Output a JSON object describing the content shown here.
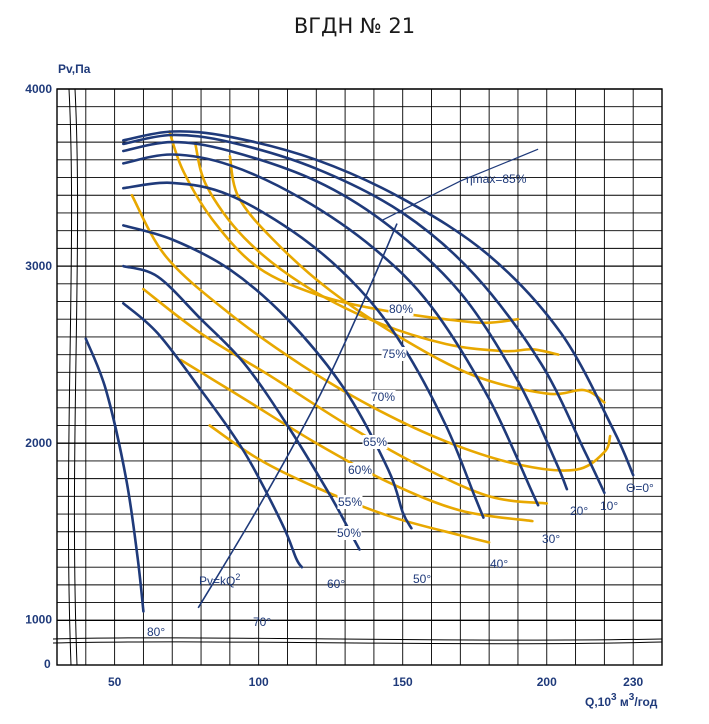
{
  "chart_data": {
    "type": "line",
    "title": "ВГДН № 21",
    "xlabel": "Q,10",
    "xlabel_sup1": "3",
    "xlabel_unit": " м",
    "xlabel_sup2": "3",
    "xlabel_tail": "/год",
    "ylabel": "Pv,Па",
    "xlim": [
      30,
      240
    ],
    "ylim": [
      900,
      4000
    ],
    "x_ticks": [
      "50",
      "100",
      "150",
      "200",
      "230"
    ],
    "x_tick_values": [
      50,
      100,
      150,
      200,
      230
    ],
    "y_ticks": [
      "1000",
      "2000",
      "3000",
      "4000"
    ],
    "y_tick_values": [
      1000,
      2000,
      3000,
      4000
    ],
    "y_zero_label": "0",
    "colors": {
      "blade": "#1f3a7a",
      "efficiency": "#e8a800",
      "grid": "#000000"
    },
    "blade_angle_series": [
      {
        "name": "0°",
        "label": "Θ=0°",
        "points": [
          [
            53,
            3710
          ],
          [
            70,
            3760
          ],
          [
            90,
            3730
          ],
          [
            120,
            3600
          ],
          [
            150,
            3380
          ],
          [
            180,
            3060
          ],
          [
            205,
            2620
          ],
          [
            223,
            2080
          ],
          [
            230,
            1820
          ]
        ]
      },
      {
        "name": "10°",
        "label": "10°",
        "points": [
          [
            53,
            3690
          ],
          [
            70,
            3740
          ],
          [
            90,
            3700
          ],
          [
            120,
            3550
          ],
          [
            150,
            3300
          ],
          [
            175,
            2950
          ],
          [
            198,
            2450
          ],
          [
            213,
            1960
          ],
          [
            220,
            1720
          ]
        ]
      },
      {
        "name": "20°",
        "label": "20°",
        "points": [
          [
            53,
            3650
          ],
          [
            70,
            3700
          ],
          [
            90,
            3650
          ],
          [
            120,
            3480
          ],
          [
            145,
            3230
          ],
          [
            170,
            2850
          ],
          [
            190,
            2350
          ],
          [
            203,
            1900
          ],
          [
            207,
            1740
          ]
        ]
      },
      {
        "name": "30°",
        "label": "30°",
        "points": [
          [
            53,
            3580
          ],
          [
            70,
            3630
          ],
          [
            90,
            3570
          ],
          [
            115,
            3380
          ],
          [
            140,
            3100
          ],
          [
            160,
            2770
          ],
          [
            180,
            2250
          ],
          [
            195,
            1720
          ],
          [
            197,
            1650
          ]
        ]
      },
      {
        "name": "40°",
        "label": "40°",
        "points": [
          [
            53,
            3440
          ],
          [
            70,
            3470
          ],
          [
            90,
            3400
          ],
          [
            115,
            3160
          ],
          [
            135,
            2870
          ],
          [
            150,
            2550
          ],
          [
            165,
            2100
          ],
          [
            175,
            1700
          ],
          [
            178,
            1580
          ]
        ]
      },
      {
        "name": "50°",
        "label": "50°",
        "points": [
          [
            53,
            3230
          ],
          [
            70,
            3150
          ],
          [
            90,
            2980
          ],
          [
            110,
            2700
          ],
          [
            130,
            2300
          ],
          [
            145,
            1850
          ],
          [
            150,
            1610
          ],
          [
            153,
            1520
          ]
        ]
      },
      {
        "name": "60°",
        "label": "60°",
        "points": [
          [
            53,
            3000
          ],
          [
            65,
            2940
          ],
          [
            80,
            2700
          ],
          [
            95,
            2450
          ],
          [
            110,
            2100
          ],
          [
            125,
            1700
          ],
          [
            133,
            1460
          ],
          [
            135,
            1400
          ]
        ]
      },
      {
        "name": "70°",
        "label": "70°",
        "points": [
          [
            53,
            2790
          ],
          [
            65,
            2620
          ],
          [
            80,
            2300
          ],
          [
            95,
            1950
          ],
          [
            108,
            1550
          ],
          [
            113,
            1350
          ],
          [
            115,
            1300
          ]
        ]
      },
      {
        "name": "80°",
        "label": "80°",
        "points": [
          [
            40,
            2590
          ],
          [
            47,
            2300
          ],
          [
            54,
            1800
          ],
          [
            58,
            1350
          ],
          [
            60,
            1050
          ]
        ]
      }
    ],
    "efficiency_series": [
      {
        "name": "80%",
        "label": "80%",
        "points": [
          [
            69,
            3760
          ],
          [
            74,
            3530
          ],
          [
            85,
            3240
          ],
          [
            100,
            2990
          ],
          [
            120,
            2840
          ],
          [
            140,
            2760
          ],
          [
            160,
            2710
          ],
          [
            178,
            2680
          ],
          [
            190,
            2700
          ]
        ]
      },
      {
        "name": "75%",
        "label": "75%",
        "points": [
          [
            78,
            3690
          ],
          [
            82,
            3450
          ],
          [
            95,
            3160
          ],
          [
            115,
            2900
          ],
          [
            140,
            2690
          ],
          [
            165,
            2560
          ],
          [
            185,
            2520
          ],
          [
            195,
            2530
          ],
          [
            204,
            2500
          ]
        ]
      },
      {
        "name": "70%",
        "label": "70%",
        "points": [
          [
            90,
            3620
          ],
          [
            93,
            3390
          ],
          [
            105,
            3150
          ],
          [
            125,
            2860
          ],
          [
            150,
            2590
          ],
          [
            175,
            2380
          ],
          [
            200,
            2280
          ],
          [
            213,
            2300
          ],
          [
            220,
            2230
          ]
        ]
      },
      {
        "name": "65%",
        "label": "65%",
        "points": [
          [
            56,
            3400
          ],
          [
            68,
            3050
          ],
          [
            90,
            2730
          ],
          [
            115,
            2440
          ],
          [
            140,
            2200
          ],
          [
            165,
            2010
          ],
          [
            190,
            1880
          ],
          [
            210,
            1850
          ],
          [
            220,
            1950
          ],
          [
            222,
            2040
          ]
        ]
      },
      {
        "name": "60%",
        "label": "60%",
        "points": [
          [
            60,
            2870
          ],
          [
            80,
            2620
          ],
          [
            105,
            2370
          ],
          [
            130,
            2110
          ],
          [
            155,
            1880
          ],
          [
            180,
            1700
          ],
          [
            200,
            1660
          ]
        ]
      },
      {
        "name": "55%",
        "label": "55%",
        "points": [
          [
            73,
            2470
          ],
          [
            95,
            2250
          ],
          [
            120,
            2000
          ],
          [
            145,
            1780
          ],
          [
            170,
            1620
          ],
          [
            195,
            1560
          ]
        ]
      },
      {
        "name": "50%",
        "label": "50%",
        "points": [
          [
            83,
            2100
          ],
          [
            100,
            1910
          ],
          [
            120,
            1750
          ],
          [
            145,
            1590
          ],
          [
            170,
            1480
          ],
          [
            180,
            1440
          ]
        ]
      }
    ],
    "resistance_line": {
      "label": "Pv=kQ",
      "label_sup": "2",
      "points": [
        [
          79,
          1070
        ],
        [
          100,
          1640
        ],
        [
          120,
          2230
        ],
        [
          135,
          2750
        ],
        [
          148,
          3240
        ]
      ]
    },
    "max_efficiency_line": {
      "label": "ηmax=85%",
      "points": [
        [
          143,
          3260
        ],
        [
          170,
          3480
        ],
        [
          197,
          3660
        ]
      ]
    }
  }
}
